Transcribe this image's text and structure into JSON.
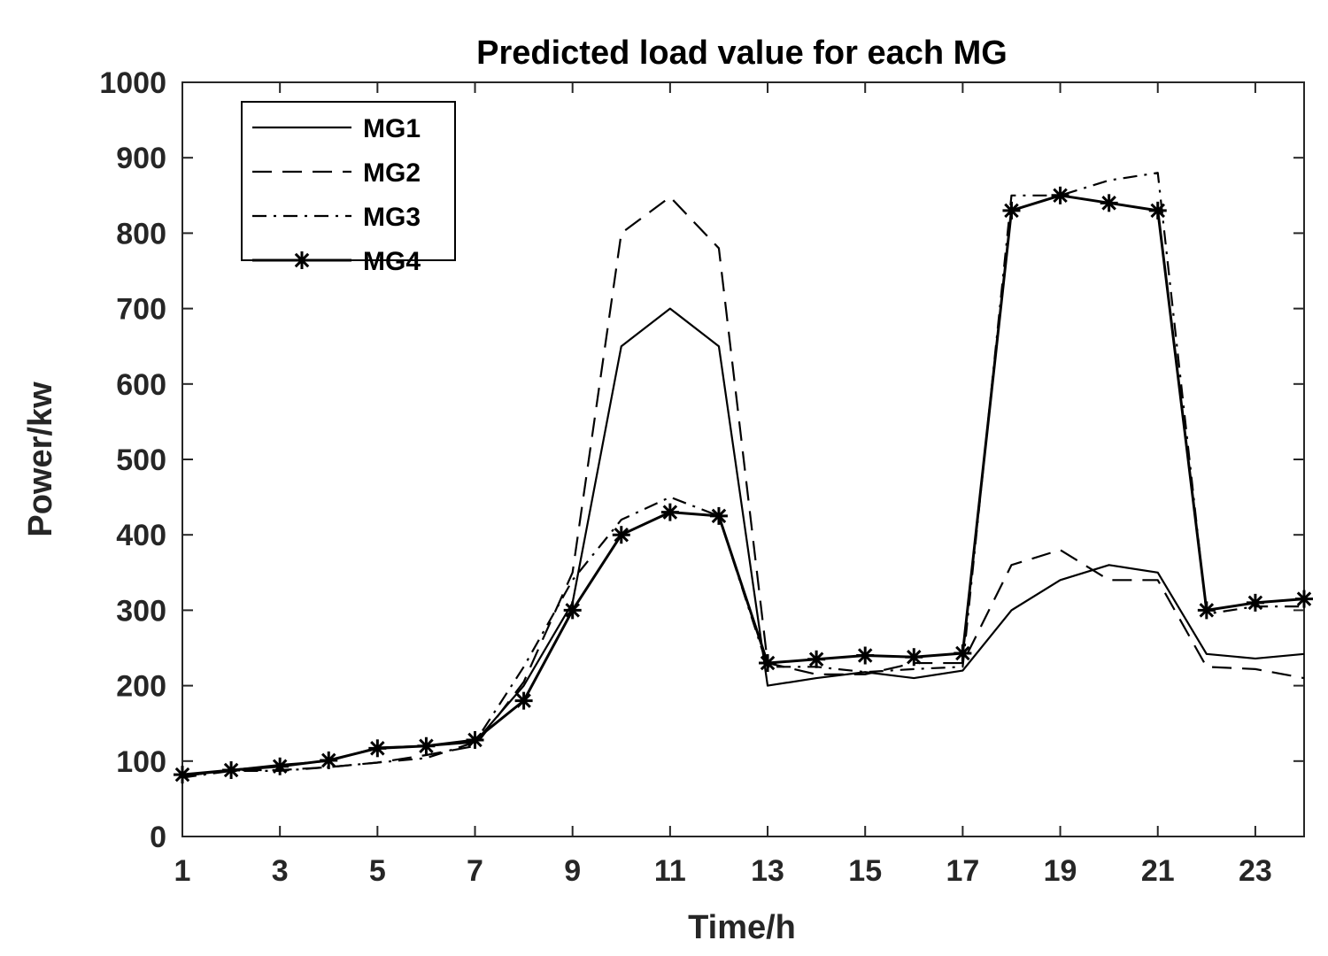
{
  "chart_data": {
    "type": "line",
    "title": "Predicted load value for each MG",
    "xlabel": "Time/h",
    "ylabel": "Power/kw",
    "xlim": [
      1,
      24
    ],
    "ylim": [
      0,
      1000
    ],
    "xticks": [
      1,
      3,
      5,
      7,
      9,
      11,
      13,
      15,
      17,
      19,
      21,
      23
    ],
    "yticks": [
      0,
      100,
      200,
      300,
      400,
      500,
      600,
      700,
      800,
      900,
      1000
    ],
    "legend_position": "top-left",
    "line_color": "#000000",
    "x": [
      1,
      2,
      3,
      4,
      5,
      6,
      7,
      8,
      9,
      10,
      11,
      12,
      13,
      14,
      15,
      16,
      17,
      18,
      19,
      20,
      21,
      22,
      23,
      24
    ],
    "series": [
      {
        "name": "MG1",
        "style": "solid",
        "marker": "none",
        "values": [
          80,
          88,
          95,
          100,
          118,
          120,
          125,
          200,
          310,
          650,
          700,
          650,
          200,
          210,
          218,
          210,
          220,
          300,
          340,
          360,
          350,
          242,
          236,
          242
        ]
      },
      {
        "name": "MG2",
        "style": "dashed",
        "marker": "none",
        "values": [
          80,
          88,
          88,
          92,
          98,
          108,
          120,
          205,
          350,
          800,
          848,
          780,
          230,
          215,
          215,
          230,
          230,
          360,
          380,
          340,
          340,
          225,
          222,
          210
        ]
      },
      {
        "name": "MG3",
        "style": "dashdot",
        "marker": "none",
        "values": [
          78,
          87,
          87,
          92,
          98,
          104,
          125,
          225,
          340,
          420,
          450,
          425,
          225,
          225,
          218,
          222,
          225,
          850,
          850,
          870,
          880,
          295,
          305,
          305
        ]
      },
      {
        "name": "MG4",
        "style": "solid",
        "marker": "asterisk",
        "values": [
          82,
          88,
          93,
          101,
          117,
          120,
          128,
          180,
          300,
          400,
          430,
          425,
          230,
          235,
          240,
          238,
          243,
          830,
          850,
          840,
          830,
          300,
          310,
          315
        ]
      }
    ]
  }
}
